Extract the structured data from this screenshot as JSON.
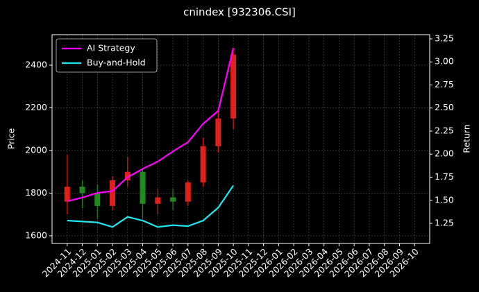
{
  "chart_data": {
    "type": "candlestick",
    "title": "cnindex [932306.CSI]",
    "ylabel": "Price",
    "y2label": "Return",
    "x": [
      "2024-11",
      "2024-12",
      "2025-01",
      "2025-02",
      "2025-03",
      "2025-04",
      "2025-05",
      "2025-06",
      "2025-07",
      "2025-08",
      "2025-09",
      "2025-10"
    ],
    "open": [
      1760,
      1830,
      1800,
      1740,
      1860,
      1900,
      1750,
      1780,
      1760,
      1850,
      2020,
      2150
    ],
    "high": [
      1980,
      1860,
      1840,
      1880,
      1970,
      1910,
      1820,
      1820,
      1860,
      2060,
      2200,
      2480
    ],
    "low": [
      1700,
      1730,
      1680,
      1720,
      1830,
      1680,
      1700,
      1720,
      1740,
      1830,
      1990,
      2100
    ],
    "close": [
      1830,
      1800,
      1740,
      1860,
      1900,
      1750,
      1780,
      1760,
      1850,
      2020,
      2150,
      2450
    ],
    "up_color": "#e0201b",
    "down_color": "#1f8a1f",
    "series": [
      {
        "name": "AI Strategy",
        "color": "#ff00ff",
        "axis": "y2",
        "values": [
          1.49,
          1.53,
          1.58,
          1.6,
          1.75,
          1.84,
          1.92,
          2.03,
          2.13,
          2.33,
          2.47,
          3.15
        ]
      },
      {
        "name": "Buy-and-Hold",
        "color": "#1ee8f0",
        "axis": "y2",
        "values": [
          1.28,
          1.27,
          1.26,
          1.21,
          1.32,
          1.28,
          1.21,
          1.23,
          1.22,
          1.28,
          1.42,
          1.66
        ]
      }
    ],
    "xlim": [
      "2024-10",
      "2026-11"
    ],
    "xticks": [
      "2024-11",
      "2024-12",
      "2025-01",
      "2025-02",
      "2025-03",
      "2025-04",
      "2025-05",
      "2025-06",
      "2025-07",
      "2025-08",
      "2025-09",
      "2025-10",
      "2025-11",
      "2025-12",
      "2026-01",
      "2026-02",
      "2026-03",
      "2026-04",
      "2026-05",
      "2026-06",
      "2026-07",
      "2026-08",
      "2026-09",
      "2026-10"
    ],
    "ylim": [
      1564,
      2543
    ],
    "yticks": [
      1600,
      1800,
      2000,
      2200,
      2400
    ],
    "y2lim": [
      1.032,
      3.295
    ],
    "y2ticks": [
      1.25,
      {
        "value": 1.5,
        "label": "1.50"
      },
      1.75,
      {
        "value": 2,
        "label": "2.00"
      },
      2.25,
      {
        "value": 2.5,
        "label": "2.50"
      },
      2.75,
      {
        "value": 3,
        "label": "3.00"
      },
      3.25
    ],
    "grid": true,
    "legend": "upper left"
  }
}
